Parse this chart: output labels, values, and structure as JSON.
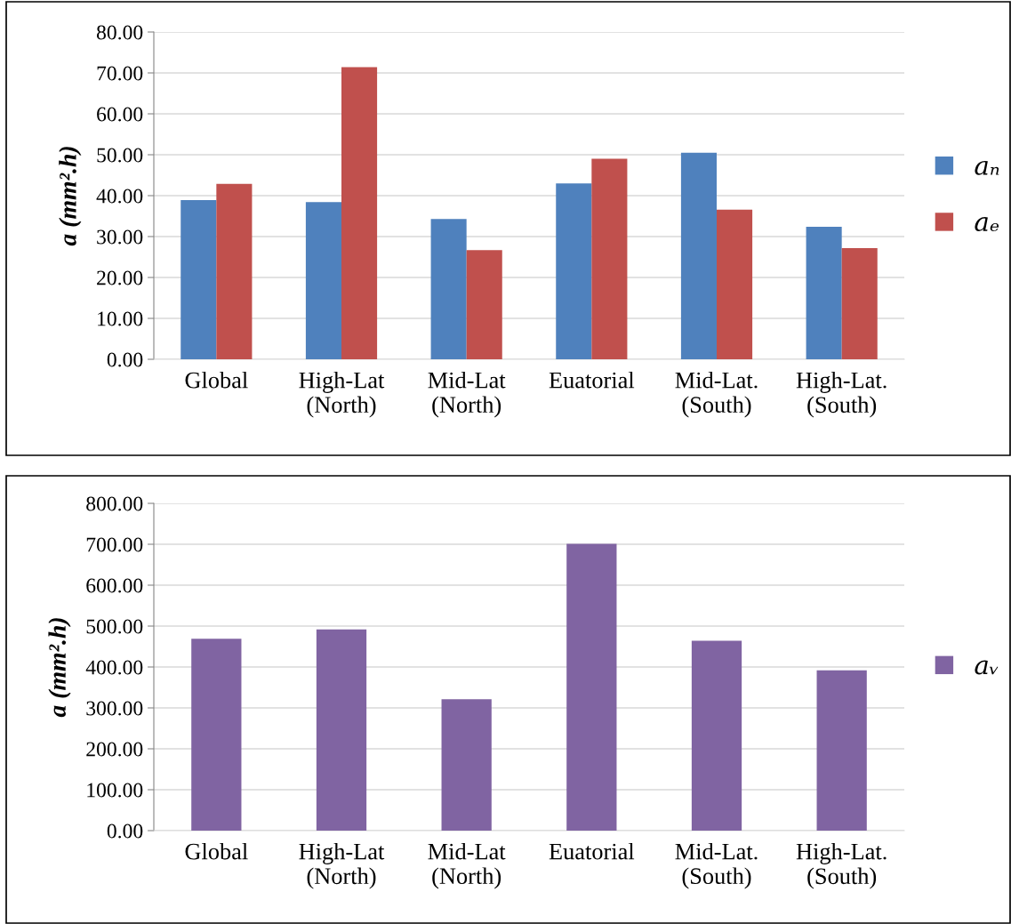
{
  "chart_data": [
    {
      "type": "bar",
      "ylabel": "a (mm².h)",
      "categories": [
        "Global",
        "High-Lat\n(North)",
        "Mid-Lat\n(North)",
        "Euatorial",
        "Mid-Lat.\n(South)",
        "High-Lat.\n(South)"
      ],
      "series": [
        {
          "name": "aₙ",
          "color": "#4f81bd",
          "values": [
            38.9,
            38.4,
            34.3,
            43.0,
            50.5,
            32.4
          ]
        },
        {
          "name": "aₑ",
          "color": "#c0504d",
          "values": [
            42.9,
            71.4,
            26.7,
            49.0,
            36.6,
            27.2
          ]
        }
      ],
      "ylim": [
        0,
        80
      ],
      "yticks": [
        {
          "value": 0,
          "label": "0.00"
        },
        {
          "value": 10,
          "label": "10.00"
        },
        {
          "value": 20,
          "label": "20.00"
        },
        {
          "value": 30,
          "label": "30.00"
        },
        {
          "value": 40,
          "label": "40.00"
        },
        {
          "value": 50,
          "label": "50.00"
        },
        {
          "value": 60,
          "label": "60.00"
        },
        {
          "value": 70,
          "label": "70.00"
        },
        {
          "value": 80,
          "label": "80.00"
        }
      ],
      "grid": "y",
      "legend": "right"
    },
    {
      "type": "bar",
      "ylabel": "a (mm².h)",
      "categories": [
        "Global",
        "High-Lat\n(North)",
        "Mid-Lat\n(North)",
        "Euatorial",
        "Mid-Lat.\n(South)",
        "High-Lat.\n(South)"
      ],
      "series": [
        {
          "name": "aᵥ",
          "color": "#8064a2",
          "values": [
            469,
            492,
            321,
            701,
            464,
            392
          ]
        }
      ],
      "ylim": [
        0,
        800
      ],
      "yticks": [
        {
          "value": 0,
          "label": "0.00"
        },
        {
          "value": 100,
          "label": "100.00"
        },
        {
          "value": 200,
          "label": "200.00"
        },
        {
          "value": 300,
          "label": "300.00"
        },
        {
          "value": 400,
          "label": "400.00"
        },
        {
          "value": 500,
          "label": "500.00"
        },
        {
          "value": 600,
          "label": "600.00"
        },
        {
          "value": 700,
          "label": "700.00"
        },
        {
          "value": 800,
          "label": "800.00"
        }
      ],
      "grid": "y",
      "legend": "right"
    }
  ]
}
